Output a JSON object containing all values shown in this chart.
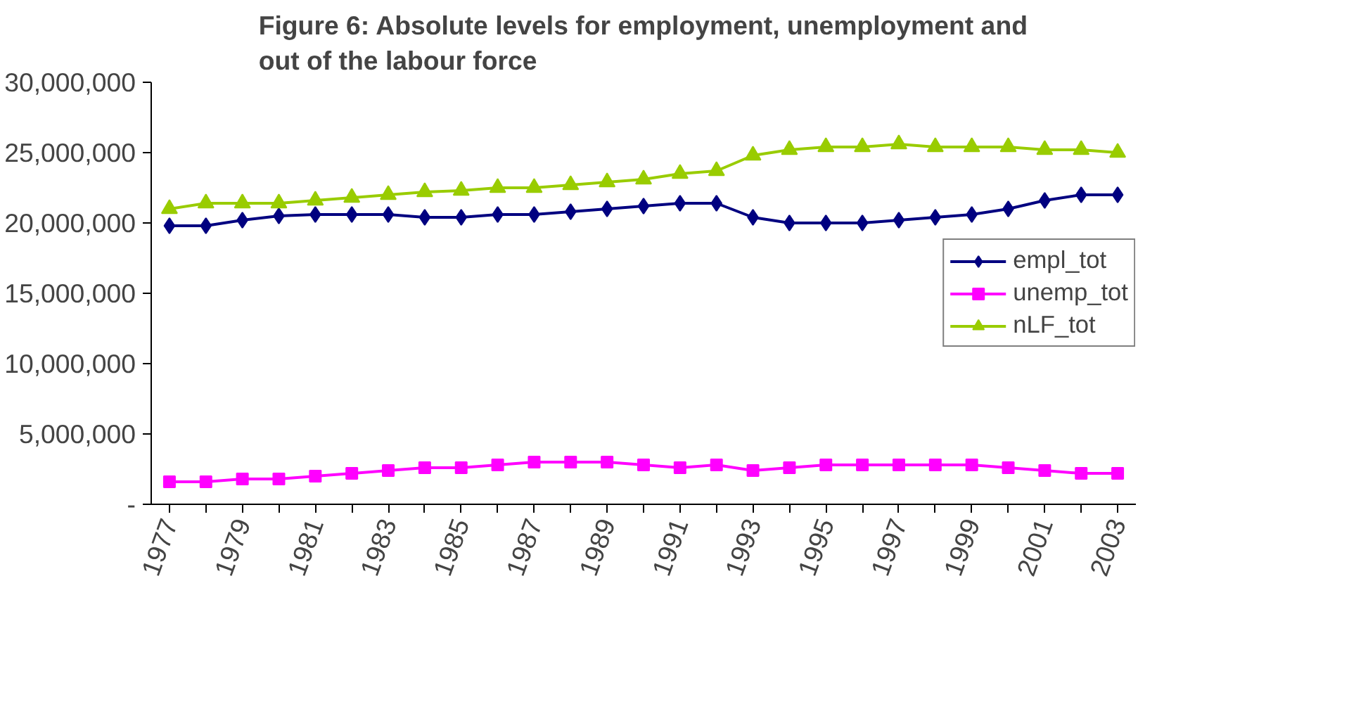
{
  "chart_data": {
    "type": "line",
    "title": "Figure 6: Absolute levels for employment, unemployment and\nout of the labour force",
    "categories": [
      "1977",
      null,
      "1979",
      null,
      "1981",
      null,
      "1983",
      null,
      "1985",
      null,
      "1987",
      null,
      "1989",
      null,
      "1991",
      null,
      "1993",
      null,
      "1995",
      null,
      "1997",
      null,
      "1999",
      null,
      "2001",
      null,
      "2003"
    ],
    "series": [
      {
        "name": "empl_tot",
        "color": "#000080",
        "marker": "diamond",
        "values": [
          19800000,
          19800000,
          20200000,
          20500000,
          20600000,
          20600000,
          20600000,
          20400000,
          20400000,
          20600000,
          20600000,
          20800000,
          21000000,
          21200000,
          21400000,
          21400000,
          20400000,
          20000000,
          20000000,
          20000000,
          20200000,
          20400000,
          20600000,
          21000000,
          21600000,
          22000000,
          22000000
        ]
      },
      {
        "name": "unemp_tot",
        "color": "#ff00ff",
        "marker": "square",
        "values": [
          1600000,
          1600000,
          1800000,
          1800000,
          2000000,
          2200000,
          2400000,
          2600000,
          2600000,
          2800000,
          3000000,
          3000000,
          3000000,
          2800000,
          2600000,
          2800000,
          2400000,
          2600000,
          2800000,
          2800000,
          2800000,
          2800000,
          2800000,
          2600000,
          2400000,
          2200000,
          2200000
        ]
      },
      {
        "name": "nLF_tot",
        "color": "#99cc00",
        "marker": "triangle",
        "values": [
          21000000,
          21400000,
          21400000,
          21400000,
          21600000,
          21800000,
          22000000,
          22200000,
          22300000,
          22500000,
          22500000,
          22700000,
          22900000,
          23100000,
          23500000,
          23700000,
          24800000,
          25200000,
          25400000,
          25400000,
          25600000,
          25400000,
          25400000,
          25400000,
          25200000,
          25200000,
          25000000
        ]
      }
    ],
    "ylim": [
      0,
      30000000
    ],
    "yticks": [
      {
        "value": 0,
        "label": "-"
      },
      {
        "value": 5000000,
        "label": "5,000,000"
      },
      {
        "value": 10000000,
        "label": "10,000,000"
      },
      {
        "value": 15000000,
        "label": "15,000,000"
      },
      {
        "value": 20000000,
        "label": "20,000,000"
      },
      {
        "value": 25000000,
        "label": "25,000,000"
      },
      {
        "value": 30000000,
        "label": "30,000,000"
      }
    ],
    "legend": "right",
    "grid": false
  }
}
